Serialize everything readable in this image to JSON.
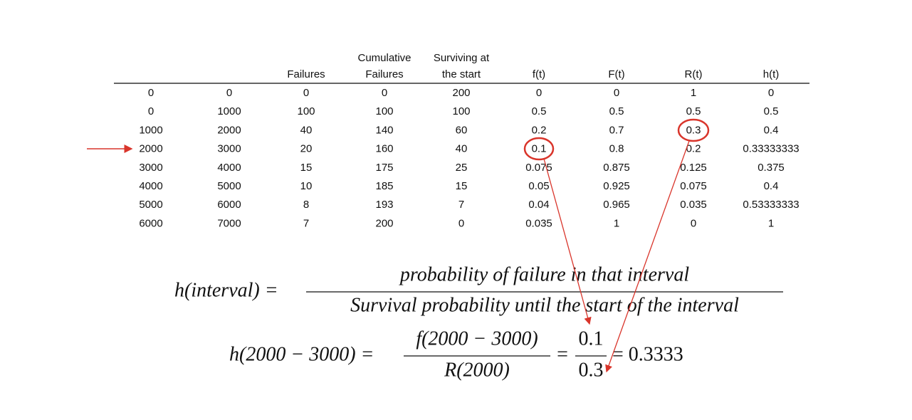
{
  "table": {
    "header": [
      [
        "Failures"
      ],
      [
        "Cumulative",
        "Failures"
      ],
      [
        "Surviving at",
        "the start"
      ],
      [
        "f(t)"
      ],
      [
        "F(t)"
      ],
      [
        "R(t)"
      ],
      [
        "h(t)"
      ]
    ],
    "rows": [
      [
        "0",
        "0",
        "0",
        "0",
        "200",
        "0",
        "0",
        "1",
        "0"
      ],
      [
        "0",
        "1000",
        "100",
        "100",
        "100",
        "0.5",
        "0.5",
        "0.5",
        "0.5"
      ],
      [
        "1000",
        "2000",
        "40",
        "140",
        "60",
        "0.2",
        "0.7",
        "0.3",
        "0.4"
      ],
      [
        "2000",
        "3000",
        "20",
        "160",
        "40",
        "0.1",
        "0.8",
        "0.2",
        "0.33333333"
      ],
      [
        "3000",
        "4000",
        "15",
        "175",
        "25",
        "0.075",
        "0.875",
        "0.125",
        "0.375"
      ],
      [
        "4000",
        "5000",
        "10",
        "185",
        "15",
        "0.05",
        "0.925",
        "0.075",
        "0.4"
      ],
      [
        "5000",
        "6000",
        "8",
        "193",
        "7",
        "0.04",
        "0.965",
        "0.035",
        "0.53333333"
      ],
      [
        "6000",
        "7000",
        "7",
        "200",
        "0",
        "0.035",
        "1",
        "0",
        "1"
      ]
    ]
  },
  "formula_general": {
    "lhs": "h(interval) =",
    "numerator": "probability of failure in that interval",
    "denominator": "Survival probability until the start of the interval"
  },
  "formula_example": {
    "lhs": "h(2000 − 3000) =",
    "numerator": "f(2000 − 3000)",
    "denominator": "R(2000)",
    "equals": "=",
    "numerator_value": "0.1",
    "denominator_value": "0.3",
    "result": "= 0.3333"
  }
}
